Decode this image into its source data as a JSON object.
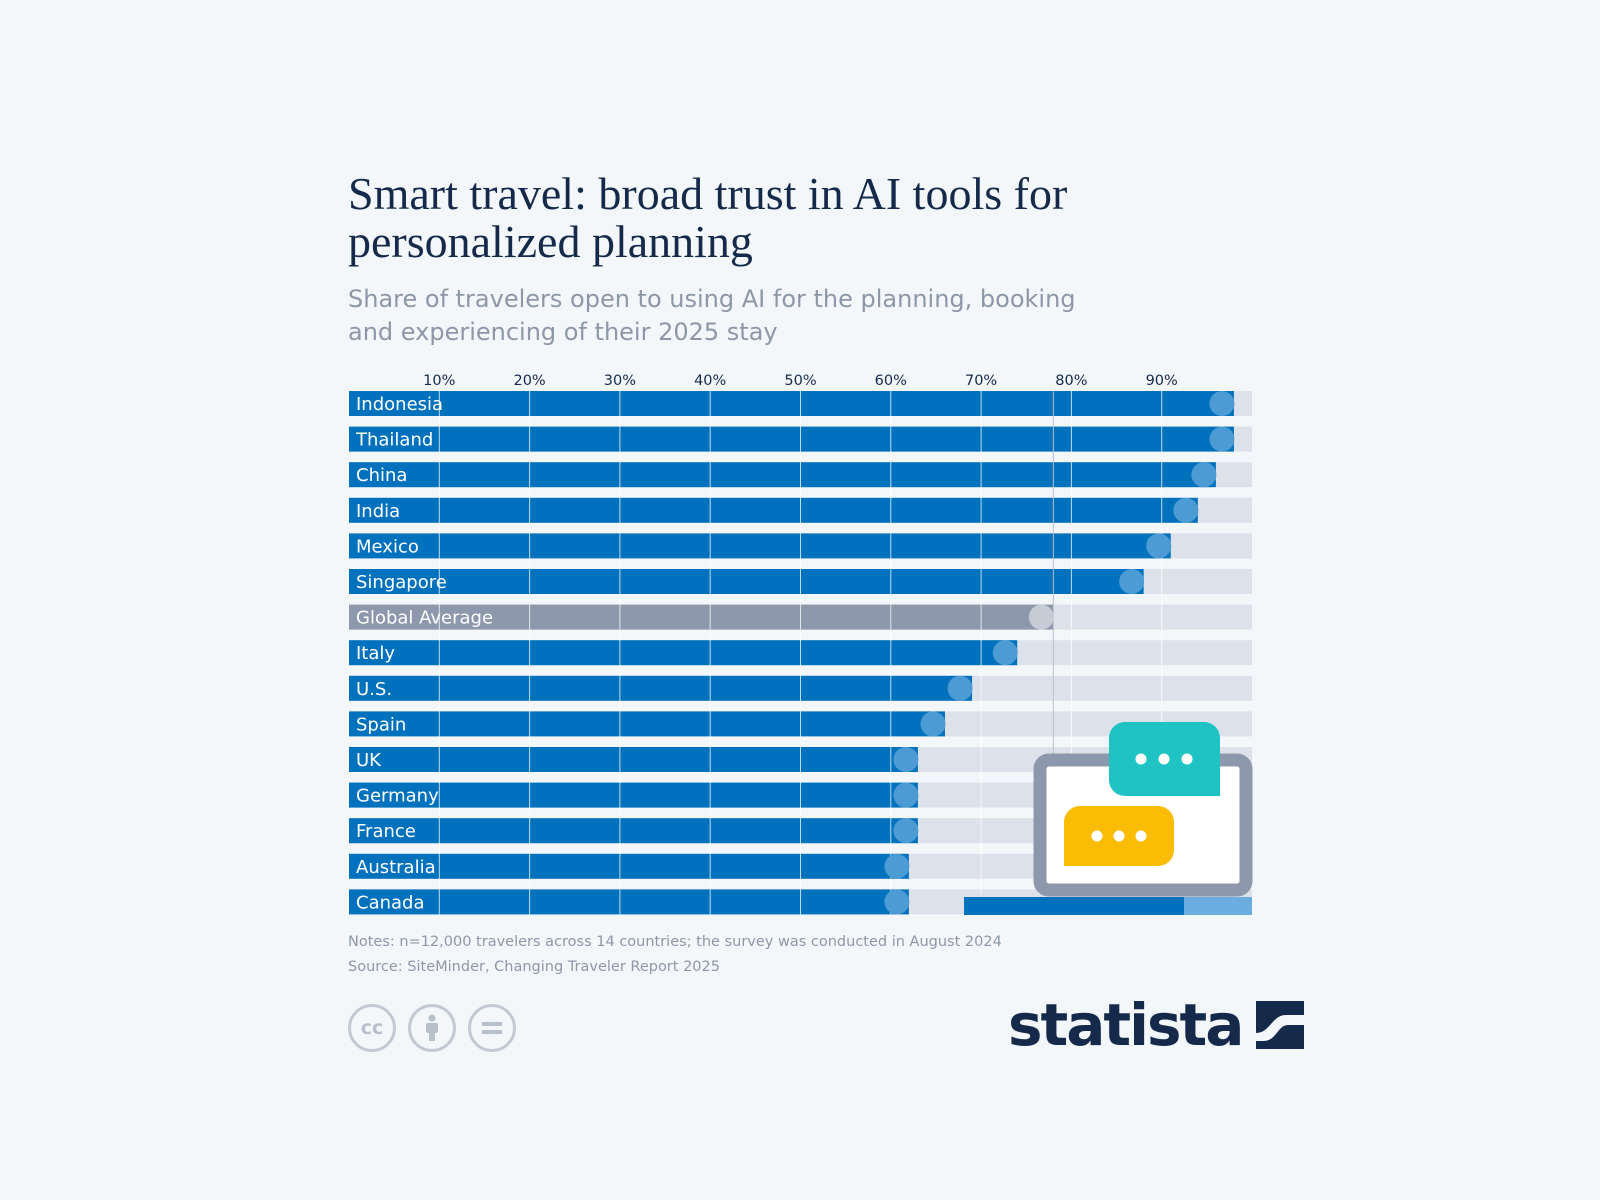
{
  "header": {
    "title": "Smart travel: broad trust in AI tools for personalized planning",
    "subtitle": "Share of travelers open to using AI for the planning, booking and experiencing of their 2025 stay"
  },
  "chart_data": {
    "type": "bar",
    "orientation": "horizontal",
    "unit": "%",
    "xlim": [
      0,
      100
    ],
    "ticks": [
      "10%",
      "20%",
      "30%",
      "40%",
      "50%",
      "60%",
      "70%",
      "80%",
      "90%"
    ],
    "tick_values": [
      10,
      20,
      30,
      40,
      50,
      60,
      70,
      80,
      90
    ],
    "categories": [
      "Indonesia",
      "Thailand",
      "China",
      "India",
      "Mexico",
      "Singapore",
      "Global Average",
      "Italy",
      "U.S.",
      "Spain",
      "UK",
      "Germany",
      "France",
      "Australia",
      "Canada"
    ],
    "values": [
      98,
      98,
      96,
      94,
      91,
      88,
      78,
      74,
      69,
      66,
      63,
      63,
      63,
      62,
      62
    ],
    "highlight": "Global Average",
    "reference_line": 78,
    "grid": true,
    "legend": "none"
  },
  "colors": {
    "bar": "#0071bd",
    "bar_end": "#4d9bd4",
    "highlight_bar": "#8d98ad",
    "highlight_end": "#c6ccd6",
    "track": "#dde2ea",
    "teal_bubble": "#20c3c3",
    "yellow_bubble": "#fbbc04",
    "laptop_frame": "#8d98ad"
  },
  "footer": {
    "notes": "Notes: n=12,000 travelers across 14 countries; the survey was conducted in August 2024",
    "source": "Source: SiteMinder, Changing Traveler Report 2025",
    "license_icons": [
      "cc-icon",
      "attribution-icon",
      "no-derivatives-icon"
    ],
    "brand": "statista"
  }
}
